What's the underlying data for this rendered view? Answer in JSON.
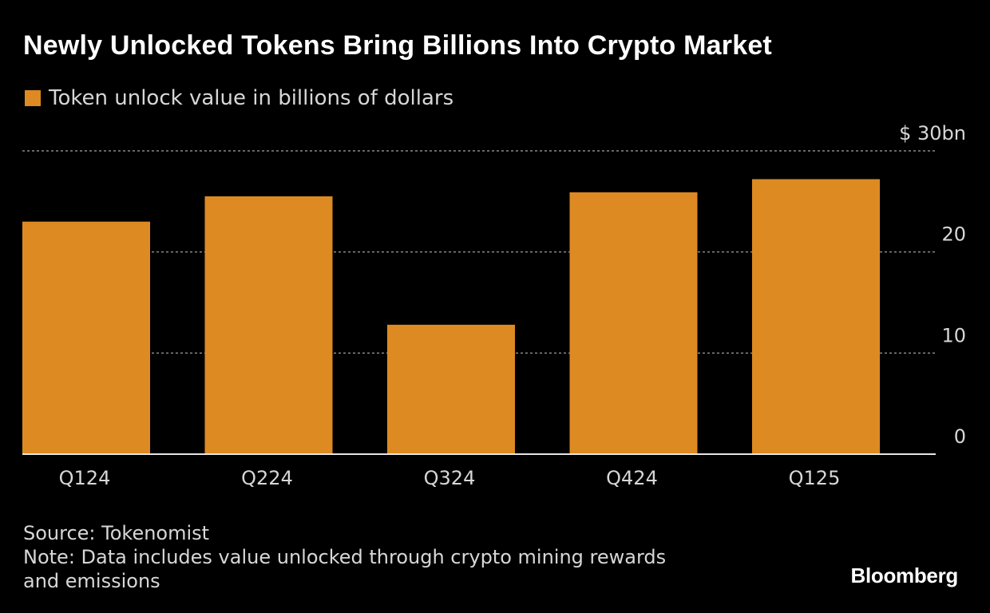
{
  "header": {
    "title": "Newly Unlocked Tokens Bring Billions Into Crypto Market"
  },
  "chart_data": {
    "type": "bar",
    "title": "Newly Unlocked Tokens Bring Billions Into Crypto Market",
    "categories": [
      "Q124",
      "Q224",
      "Q324",
      "Q424",
      "Q125"
    ],
    "series": [
      {
        "name": "Token unlock value in billions of dollars",
        "values": [
          23.0,
          25.5,
          12.8,
          25.9,
          27.2
        ],
        "color": "#dd8a22"
      }
    ],
    "ylim": [
      0,
      30
    ],
    "yticks": [
      0,
      10,
      20,
      30
    ],
    "ytick_labels": [
      "0",
      "10",
      "20",
      "$ 30bn"
    ],
    "xlabel": "",
    "ylabel": "",
    "grid": true,
    "legend_position": "top-left"
  },
  "footer": {
    "source": "Source: Tokenomist",
    "note_line1": "Note: Data includes value unlocked through crypto mining rewards",
    "note_line2": "and emissions",
    "brand": "Bloomberg"
  },
  "colors": {
    "background": "#000000",
    "bar": "#dd8a22",
    "grid": "#8a8a8a",
    "text": "#d7d7d7"
  }
}
